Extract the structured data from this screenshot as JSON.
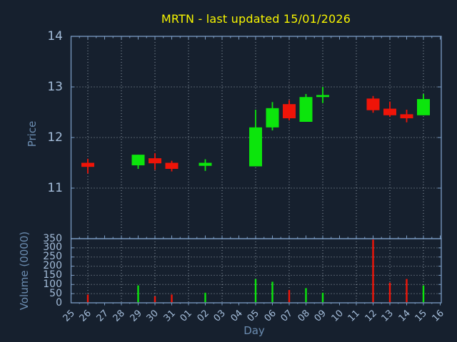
{
  "title": "MRTN - last updated 15/01/2026",
  "colors": {
    "background": "#16202e",
    "axis_border": "#7b9cc4",
    "grid": "#939ea9",
    "tick_label": "#a4bdda",
    "axis_title": "#6b8cb0",
    "title": "#f7f500",
    "up": "#0ce50c",
    "down": "#ef1408"
  },
  "axes": {
    "price_axis_title": "Price",
    "volume_axis_title": "Volume (0000)",
    "x_axis_title": "Day"
  },
  "chart_data": [
    {
      "type": "candlestick",
      "title": "MRTN - last updated 15/01/2026",
      "xlabel": "Day",
      "ylabel": "Price",
      "categories": [
        "25",
        "26",
        "27",
        "28",
        "29",
        "30",
        "31",
        "01",
        "02",
        "03",
        "04",
        "05",
        "06",
        "07",
        "08",
        "09",
        "10",
        "11",
        "12",
        "13",
        "14",
        "15",
        "16"
      ],
      "ylim": [
        10,
        14
      ],
      "yticks": [
        11,
        12,
        13,
        14
      ],
      "grid": "dotted; vertical gridline every 2nd day; horizontal at each labeled price",
      "legend": "none",
      "candles": [
        {
          "day": "26",
          "open": 11.5,
          "high": 11.58,
          "low": 11.29,
          "close": 11.42
        },
        {
          "day": "29",
          "open": 11.45,
          "high": 11.66,
          "low": 11.38,
          "close": 11.66
        },
        {
          "day": "30",
          "open": 11.59,
          "high": 11.69,
          "low": 11.36,
          "close": 11.49
        },
        {
          "day": "31",
          "open": 11.5,
          "high": 11.54,
          "low": 11.33,
          "close": 11.38
        },
        {
          "day": "02",
          "open": 11.44,
          "high": 11.57,
          "low": 11.34,
          "close": 11.5
        },
        {
          "day": "05",
          "open": 11.43,
          "high": 12.55,
          "low": 11.43,
          "close": 12.2
        },
        {
          "day": "06",
          "open": 12.2,
          "high": 12.7,
          "low": 12.14,
          "close": 12.58
        },
        {
          "day": "07",
          "open": 12.66,
          "high": 12.74,
          "low": 12.34,
          "close": 12.38
        },
        {
          "day": "08",
          "open": 12.31,
          "high": 12.86,
          "low": 12.31,
          "close": 12.8
        },
        {
          "day": "09",
          "open": 12.8,
          "high": 13.0,
          "low": 12.68,
          "close": 12.84
        },
        {
          "day": "12",
          "open": 12.77,
          "high": 12.82,
          "low": 12.49,
          "close": 12.54
        },
        {
          "day": "13",
          "open": 12.57,
          "high": 12.71,
          "low": 12.41,
          "close": 12.44
        },
        {
          "day": "14",
          "open": 12.46,
          "high": 12.55,
          "low": 12.3,
          "close": 12.38
        },
        {
          "day": "15",
          "open": 12.44,
          "high": 12.86,
          "low": 12.44,
          "close": 12.76
        }
      ]
    },
    {
      "type": "bar",
      "xlabel": "Day",
      "ylabel": "Volume (0000)",
      "categories": [
        "25",
        "26",
        "27",
        "28",
        "29",
        "30",
        "31",
        "01",
        "02",
        "03",
        "04",
        "05",
        "06",
        "07",
        "08",
        "09",
        "10",
        "11",
        "12",
        "13",
        "14",
        "15",
        "16"
      ],
      "ylim": [
        0,
        350
      ],
      "yticks": [
        0,
        50,
        100,
        150,
        200,
        250,
        300,
        350
      ],
      "grid": "dotted; vertical gridline every 2nd day; horizontal every 50",
      "bars": [
        {
          "day": "26",
          "value": 45,
          "direction": "down"
        },
        {
          "day": "29",
          "value": 95,
          "direction": "up"
        },
        {
          "day": "30",
          "value": 35,
          "direction": "down"
        },
        {
          "day": "31",
          "value": 45,
          "direction": "down"
        },
        {
          "day": "02",
          "value": 55,
          "direction": "up"
        },
        {
          "day": "05",
          "value": 130,
          "direction": "up"
        },
        {
          "day": "06",
          "value": 115,
          "direction": "up"
        },
        {
          "day": "07",
          "value": 70,
          "direction": "down"
        },
        {
          "day": "08",
          "value": 80,
          "direction": "up"
        },
        {
          "day": "09",
          "value": 55,
          "direction": "up"
        },
        {
          "day": "12",
          "value": 345,
          "direction": "down"
        },
        {
          "day": "13",
          "value": 110,
          "direction": "down"
        },
        {
          "day": "14",
          "value": 130,
          "direction": "down"
        },
        {
          "day": "15",
          "value": 95,
          "direction": "up"
        }
      ]
    }
  ]
}
